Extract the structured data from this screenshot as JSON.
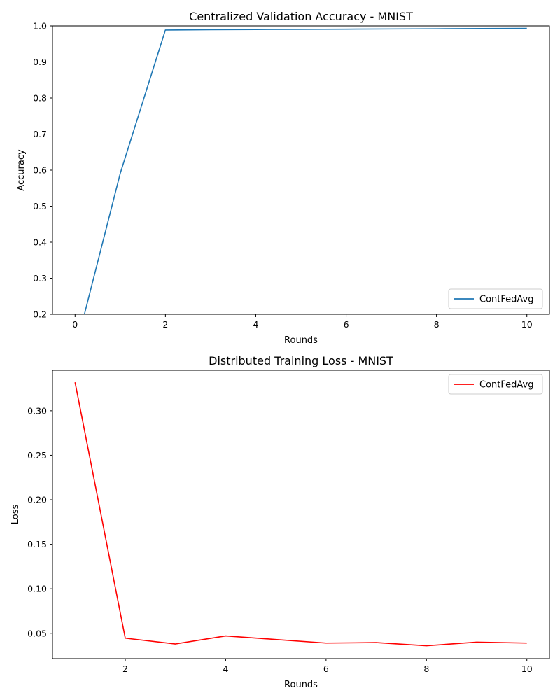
{
  "chart_data": [
    {
      "type": "line",
      "title": "Centralized Validation Accuracy - MNIST",
      "xlabel": "Rounds",
      "ylabel": "Accuracy",
      "xlim": [
        -0.5,
        10.5
      ],
      "ylim": [
        0.2,
        1.0
      ],
      "xticks": [
        0,
        2,
        4,
        6,
        8,
        10
      ],
      "yticks": [
        0.2,
        0.3,
        0.4,
        0.5,
        0.6,
        0.7,
        0.8,
        0.9,
        1.0
      ],
      "ytick_decimals": 1,
      "grid": false,
      "legend_position": "lower-right",
      "series": [
        {
          "name": "ContFedAvg",
          "color": "#1f77b4",
          "x": [
            0,
            1,
            2,
            3,
            4,
            5,
            6,
            7,
            8,
            9,
            10
          ],
          "y": [
            0.098,
            0.591,
            0.9885,
            0.9893,
            0.99,
            0.9905,
            0.991,
            0.9915,
            0.992,
            0.9925,
            0.993
          ]
        }
      ]
    },
    {
      "type": "line",
      "title": "Distributed Training Loss - MNIST",
      "xlabel": "Rounds",
      "ylabel": "Loss",
      "xlim": [
        0.55,
        10.45
      ],
      "ylim": [
        0.0215,
        0.3455
      ],
      "xticks": [
        2,
        4,
        6,
        8,
        10
      ],
      "yticks": [
        0.05,
        0.1,
        0.15,
        0.2,
        0.25,
        0.3
      ],
      "ytick_decimals": 2,
      "grid": false,
      "legend_position": "upper-right",
      "series": [
        {
          "name": "ContFedAvg",
          "color": "#ff0000",
          "x": [
            1,
            2,
            3,
            4,
            5,
            6,
            7,
            8,
            9,
            10
          ],
          "y": [
            0.332,
            0.0445,
            0.038,
            0.047,
            0.043,
            0.039,
            0.0395,
            0.036,
            0.04,
            0.039
          ]
        }
      ]
    }
  ]
}
